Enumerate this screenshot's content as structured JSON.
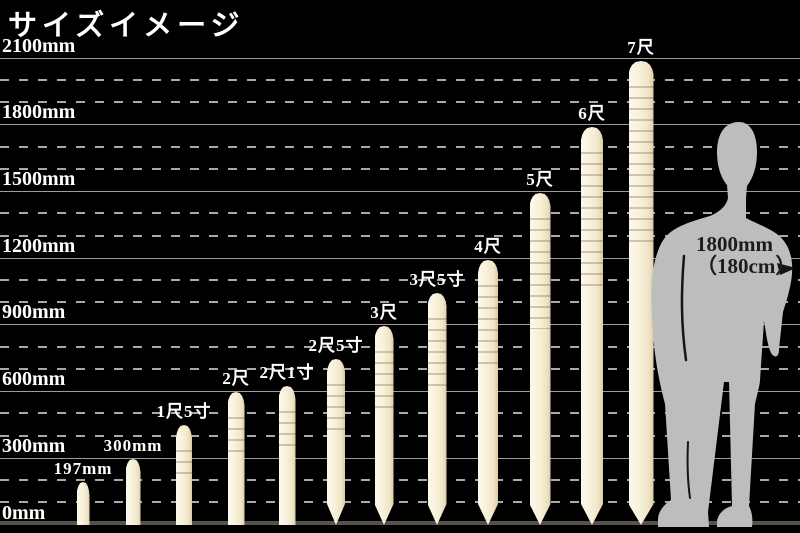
{
  "title": "サイズイメージ",
  "colors": {
    "background": "#000000",
    "stake_fill": "#f7f0da",
    "stake_edge": "#dccca3",
    "gridline": "#9c9c9c",
    "baseline": "#56534a",
    "text_white": "#ffffff",
    "figure_gray": "#bdbdbd",
    "figure_text": "#1c1c1c"
  },
  "chart_data": {
    "type": "bar",
    "title": "サイズイメージ",
    "ylabel": "",
    "xlabel": "",
    "unit": "mm",
    "ylim": [
      0,
      2100
    ],
    "y_axis": {
      "tick_labels": [
        "0mm",
        "300mm",
        "600mm",
        "900mm",
        "1200mm",
        "1500mm",
        "1800mm",
        "2100mm"
      ],
      "labeled_interval_mm": 300,
      "minor_gridline_interval_mm": 100,
      "grid": "solid lines at labeled ticks, dashed lines at minor ticks"
    },
    "bars": [
      {
        "label": "197mm",
        "value_mm": 197,
        "pointed_bottom": false
      },
      {
        "label": "300mm",
        "value_mm": 300,
        "pointed_bottom": false
      },
      {
        "label": "1尺5寸",
        "value_mm": 455,
        "pointed_bottom": false
      },
      {
        "label": "2尺",
        "value_mm": 606,
        "pointed_bottom": false
      },
      {
        "label": "2尺1寸",
        "value_mm": 636,
        "pointed_bottom": false
      },
      {
        "label": "2尺5寸",
        "value_mm": 758,
        "pointed_bottom": true
      },
      {
        "label": "3尺",
        "value_mm": 909,
        "pointed_bottom": true
      },
      {
        "label": "3尺5寸",
        "value_mm": 1061,
        "pointed_bottom": true
      },
      {
        "label": "4尺",
        "value_mm": 1212,
        "pointed_bottom": true
      },
      {
        "label": "5尺",
        "value_mm": 1515,
        "pointed_bottom": true
      },
      {
        "label": "6尺",
        "value_mm": 1818,
        "pointed_bottom": true
      },
      {
        "label": "7尺",
        "value_mm": 2121,
        "pointed_bottom": true
      }
    ],
    "reference_figure": {
      "description": "standing person silhouette",
      "height_mm": 1800,
      "label_line1": "1800mm",
      "label_line2": "（180cm）"
    }
  }
}
